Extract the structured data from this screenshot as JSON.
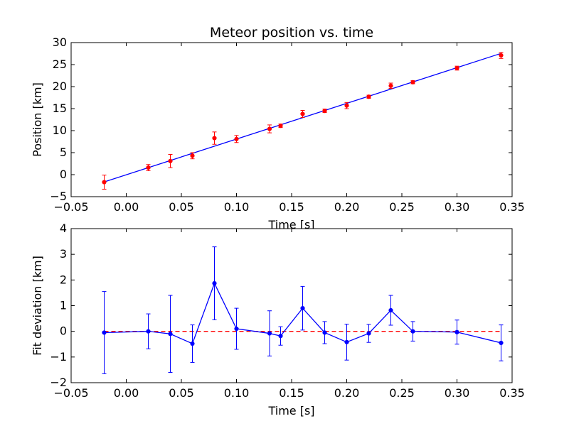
{
  "chart_data": [
    {
      "type": "scatter",
      "title": "Meteor position vs. time",
      "xlabel": "Time [s]",
      "ylabel": "Position [km]",
      "xlim": [
        -0.05,
        0.35
      ],
      "ylim": [
        -5,
        30
      ],
      "xticks": [
        -0.05,
        0.0,
        0.05,
        0.1,
        0.15,
        0.2,
        0.25,
        0.3,
        0.35
      ],
      "xtick_labels": [
        "−0.05",
        "0.00",
        "0.05",
        "0.10",
        "0.15",
        "0.20",
        "0.25",
        "0.30",
        "0.35"
      ],
      "yticks": [
        -5,
        0,
        5,
        10,
        15,
        20,
        25,
        30
      ],
      "ytick_labels": [
        "−5",
        "0",
        "5",
        "10",
        "15",
        "20",
        "25",
        "30"
      ],
      "grid": false,
      "points": {
        "x": [
          -0.02,
          0.02,
          0.04,
          0.06,
          0.08,
          0.1,
          0.13,
          0.14,
          0.16,
          0.18,
          0.2,
          0.22,
          0.24,
          0.26,
          0.3,
          0.34
        ],
        "y": [
          -1.7,
          1.6,
          3.1,
          4.3,
          8.3,
          8.1,
          10.4,
          11.1,
          13.8,
          14.5,
          15.7,
          17.7,
          20.2,
          21.0,
          24.2,
          27.1
        ],
        "yerr": [
          1.6,
          0.7,
          1.5,
          0.7,
          1.4,
          0.8,
          0.9,
          0.4,
          0.8,
          0.4,
          0.7,
          0.35,
          0.6,
          0.35,
          0.45,
          0.7
        ],
        "color": "#ff0000"
      },
      "fit_line": {
        "x": [
          -0.02,
          0.34
        ],
        "y": [
          -1.65,
          27.55
        ],
        "color": "#0000ff"
      }
    },
    {
      "type": "line",
      "title": "",
      "xlabel": "Time [s]",
      "ylabel": "Fit deviation [km]",
      "xlim": [
        -0.05,
        0.35
      ],
      "ylim": [
        -2,
        4
      ],
      "xticks": [
        -0.05,
        0.0,
        0.05,
        0.1,
        0.15,
        0.2,
        0.25,
        0.3,
        0.35
      ],
      "xtick_labels": [
        "−0.05",
        "0.00",
        "0.05",
        "0.10",
        "0.15",
        "0.20",
        "0.25",
        "0.30",
        "0.35"
      ],
      "yticks": [
        -2,
        -1,
        0,
        1,
        2,
        3,
        4
      ],
      "ytick_labels": [
        "−2",
        "−1",
        "0",
        "1",
        "2",
        "3",
        "4"
      ],
      "grid": false,
      "series": {
        "x": [
          -0.02,
          0.02,
          0.04,
          0.06,
          0.08,
          0.1,
          0.13,
          0.14,
          0.16,
          0.18,
          0.2,
          0.22,
          0.24,
          0.26,
          0.3,
          0.34
        ],
        "y": [
          -0.05,
          0.0,
          -0.1,
          -0.48,
          1.87,
          0.1,
          -0.08,
          -0.18,
          0.9,
          -0.05,
          -0.42,
          -0.08,
          0.82,
          0.0,
          -0.03,
          -0.45
        ],
        "yerr": [
          1.6,
          0.68,
          1.5,
          0.73,
          1.42,
          0.8,
          0.88,
          0.36,
          0.85,
          0.43,
          0.7,
          0.35,
          0.58,
          0.38,
          0.47,
          0.7
        ],
        "color": "#0000ff"
      },
      "zero_line": {
        "y": 0,
        "color": "#ff0000",
        "style": "dashed"
      }
    }
  ]
}
